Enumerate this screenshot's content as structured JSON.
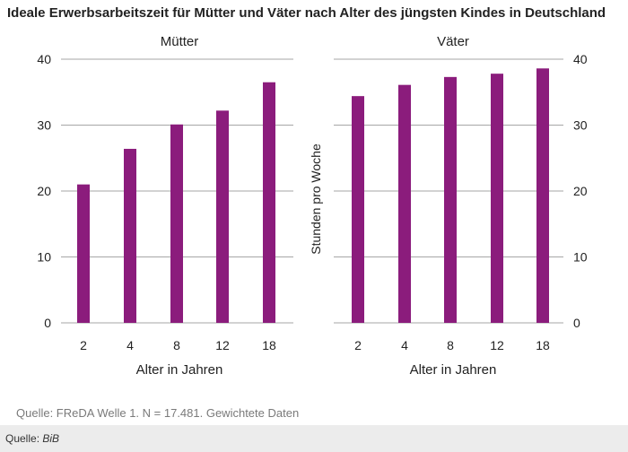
{
  "title": "Ideale Erwerbsarbeitszeit für Mütter und Väter nach Alter des jüngsten Kindes in Deutschland",
  "source_note": "Quelle: FReDA Welle 1. N = 17.481. Gewichtete Daten",
  "footer": {
    "prefix": "Quelle: ",
    "source": "BiB"
  },
  "colors": {
    "bar": "#8b1c7c",
    "grid": "#a6a6a6",
    "axis": "#a6a6a6",
    "text": "#222222"
  },
  "shared_ylabel": "Stunden pro Woche",
  "chart_data": [
    {
      "type": "bar",
      "title": "Mütter",
      "categories": [
        "2",
        "4",
        "8",
        "12",
        "18"
      ],
      "values": [
        21,
        26.4,
        30.1,
        32.2,
        36.5
      ],
      "xlabel": "Alter in Jahren",
      "ylabel": "Stunden pro Woche",
      "ylim": [
        0,
        40
      ],
      "yticks": [
        0,
        10,
        20,
        30,
        40
      ],
      "yaxis_side": "left",
      "grid": true
    },
    {
      "type": "bar",
      "title": "Väter",
      "categories": [
        "2",
        "4",
        "8",
        "12",
        "18"
      ],
      "values": [
        34.4,
        36.1,
        37.3,
        37.8,
        38.6
      ],
      "xlabel": "Alter in Jahren",
      "ylabel": "Stunden pro Woche",
      "ylim": [
        0,
        40
      ],
      "yticks": [
        0,
        10,
        20,
        30,
        40
      ],
      "yaxis_side": "right",
      "grid": true
    }
  ]
}
